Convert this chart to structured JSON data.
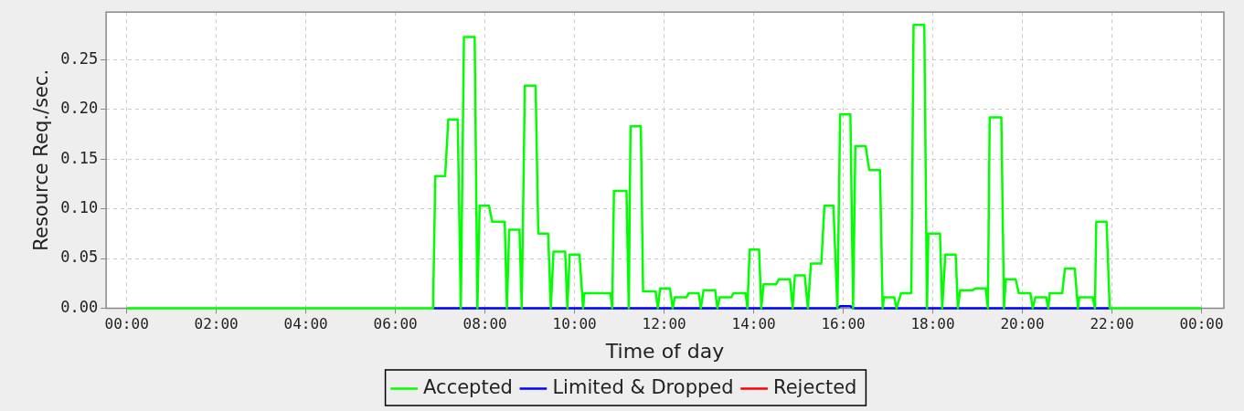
{
  "chart_data": {
    "type": "line",
    "xlabel": "Time of day",
    "ylabel": "Resource Req./sec.",
    "xlim": [
      -0.46,
      24.5
    ],
    "ylim": [
      0,
      0.298
    ],
    "xticks": [
      {
        "value": 0,
        "label": "00:00"
      },
      {
        "value": 2,
        "label": "02:00"
      },
      {
        "value": 4,
        "label": "04:00"
      },
      {
        "value": 6,
        "label": "06:00"
      },
      {
        "value": 8,
        "label": "08:00"
      },
      {
        "value": 10,
        "label": "10:00"
      },
      {
        "value": 12,
        "label": "12:00"
      },
      {
        "value": 14,
        "label": "14:00"
      },
      {
        "value": 16,
        "label": "16:00"
      },
      {
        "value": 18,
        "label": "18:00"
      },
      {
        "value": 20,
        "label": "20:00"
      },
      {
        "value": 22,
        "label": "22:00"
      },
      {
        "value": 24,
        "label": "00:00"
      }
    ],
    "yticks": [
      {
        "value": 0,
        "label": "0.00"
      },
      {
        "value": 0.05,
        "label": "0.05"
      },
      {
        "value": 0.1,
        "label": "0.10"
      },
      {
        "value": 0.15,
        "label": "0.15"
      },
      {
        "value": 0.2,
        "label": "0.20"
      },
      {
        "value": 0.25,
        "label": "0.25"
      }
    ],
    "grid": true,
    "legend": "bottom",
    "marker": "none",
    "line_style": "solid",
    "series": [
      {
        "name": "Accepted",
        "color": "#00ff00",
        "x": [
          0,
          6.84,
          6.89,
          7.11,
          7.18,
          7.39,
          7.46,
          7.53,
          7.77,
          7.83,
          7.88,
          8.09,
          8.16,
          8.44,
          8.49,
          8.54,
          8.77,
          8.82,
          8.89,
          9.13,
          9.19,
          9.41,
          9.47,
          9.53,
          9.79,
          9.84,
          9.89,
          10.11,
          10.19,
          10.22,
          10.8,
          10.84,
          10.88,
          11.16,
          11.21,
          11.25,
          11.48,
          11.53,
          11.81,
          11.86,
          11.91,
          12.13,
          12.19,
          12.24,
          12.5,
          12.55,
          12.77,
          12.82,
          12.88,
          13.14,
          13.19,
          13.24,
          13.5,
          13.55,
          13.82,
          13.86,
          13.91,
          14.12,
          14.17,
          14.22,
          14.5,
          14.56,
          14.81,
          14.87,
          14.92,
          15.14,
          15.21,
          15.28,
          15.51,
          15.58,
          15.78,
          15.87,
          15.93,
          16.16,
          16.22,
          16.27,
          16.5,
          16.58,
          16.82,
          16.88,
          16.91,
          17.14,
          17.19,
          17.29,
          17.52,
          17.57,
          17.81,
          17.87,
          17.9,
          18.16,
          18.21,
          18.28,
          18.51,
          18.56,
          18.61,
          18.89,
          18.96,
          19.18,
          19.23,
          19.27,
          19.53,
          19.59,
          19.63,
          19.85,
          19.92,
          20.18,
          20.23,
          20.29,
          20.53,
          20.58,
          20.61,
          20.89,
          20.95,
          21.17,
          21.24,
          21.27,
          21.57,
          21.62,
          21.65,
          21.88,
          21.95,
          24
        ],
        "values": [
          0,
          0,
          0.133,
          0.133,
          0.19,
          0.19,
          0,
          0.273,
          0.273,
          0,
          0.103,
          0.103,
          0.087,
          0.087,
          0,
          0.079,
          0.079,
          0,
          0.224,
          0.224,
          0.075,
          0.075,
          0,
          0.057,
          0.057,
          0,
          0.054,
          0.054,
          0,
          0.015,
          0.015,
          0,
          0.118,
          0.118,
          0,
          0.183,
          0.183,
          0.017,
          0.017,
          0,
          0.02,
          0.02,
          0,
          0.011,
          0.011,
          0.015,
          0.015,
          0,
          0.018,
          0.018,
          0,
          0.011,
          0.011,
          0.015,
          0.015,
          0,
          0.059,
          0.059,
          0,
          0.024,
          0.024,
          0.029,
          0.029,
          0,
          0.033,
          0.033,
          0,
          0.045,
          0.045,
          0.103,
          0.103,
          0,
          0.195,
          0.195,
          0,
          0.163,
          0.163,
          0.139,
          0.139,
          0,
          0.011,
          0.011,
          0,
          0.015,
          0.015,
          0.285,
          0.285,
          0,
          0.075,
          0.075,
          0,
          0.054,
          0.054,
          0,
          0.018,
          0.018,
          0.02,
          0.02,
          0,
          0.192,
          0.192,
          0,
          0.029,
          0.029,
          0.015,
          0.015,
          0,
          0.011,
          0.011,
          0,
          0.015,
          0.015,
          0.04,
          0.04,
          0,
          0.011,
          0.011,
          0,
          0.087,
          0.087,
          0,
          0
        ]
      },
      {
        "name": "Limited & Dropped",
        "color": "#0000ff",
        "x": [
          6.84,
          15.87,
          15.93,
          16.16,
          16.22,
          21.95
        ],
        "values": [
          0,
          0,
          0.002,
          0.002,
          0,
          0
        ]
      },
      {
        "name": "Rejected",
        "color": "#ff0000"
      }
    ]
  }
}
